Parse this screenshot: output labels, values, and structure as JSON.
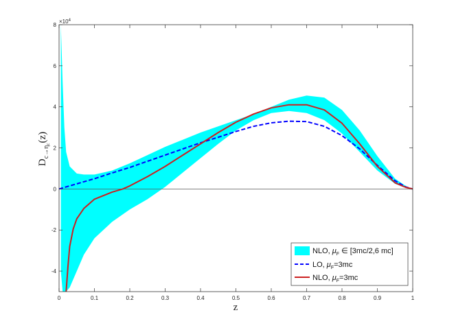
{
  "chart_data": {
    "type": "line",
    "title": "",
    "xlabel": "z",
    "ylabel_main": "D",
    "ylabel_sub": "c→η",
    "ylabel_subsub": "c",
    "ylabel_arg": "(z)",
    "y_exponent": "×10",
    "y_exponent_power": "4",
    "xlim": [
      0,
      1
    ],
    "ylim": [
      -50000,
      80000
    ],
    "x_ticks": [
      0,
      0.1,
      0.2,
      0.3,
      0.4,
      0.5,
      0.6,
      0.7,
      0.8,
      0.9,
      1
    ],
    "x_tick_labels": [
      "0",
      "0.1",
      "0.2",
      "0.3",
      "0.4",
      "0.5",
      "0.6",
      "0.7",
      "0.8",
      "0.9",
      "1"
    ],
    "y_ticks": [
      -40000,
      -20000,
      0,
      20000,
      40000,
      60000,
      80000
    ],
    "y_tick_labels": [
      "-4",
      "-2",
      "0",
      "2",
      "4",
      "6",
      "8"
    ],
    "grid": false,
    "legend_position": "bottom-right",
    "band": {
      "name": "NLO, μF ∈ [3mc/2,6 mc]",
      "color": "#00ffff",
      "x": [
        0.005,
        0.01,
        0.015,
        0.02,
        0.03,
        0.05,
        0.07,
        0.1,
        0.15,
        0.2,
        0.25,
        0.3,
        0.35,
        0.4,
        0.45,
        0.5,
        0.55,
        0.6,
        0.65,
        0.7,
        0.75,
        0.8,
        0.85,
        0.9,
        0.95,
        0.98,
        1.0
      ],
      "upper": [
        80000,
        52000,
        30000,
        18000,
        11000,
        7500,
        7000,
        7000,
        9000,
        12500,
        16500,
        20500,
        24000,
        27500,
        30500,
        33500,
        36500,
        40000,
        43500,
        45500,
        44500,
        38500,
        28500,
        16000,
        5000,
        1500,
        0
      ],
      "lower": [
        -40000,
        -50000,
        -50000,
        -50000,
        -48000,
        -40000,
        -32000,
        -24000,
        -16000,
        -10000,
        -5000,
        1000,
        8000,
        15000,
        22000,
        28500,
        33500,
        37000,
        38000,
        37000,
        33500,
        27000,
        18000,
        9000,
        2500,
        500,
        0
      ]
    },
    "series": [
      {
        "name": "LO, μF=3mc",
        "color": "#0000ff",
        "dash": true,
        "x": [
          0,
          0.05,
          0.1,
          0.15,
          0.2,
          0.25,
          0.3,
          0.35,
          0.4,
          0.45,
          0.5,
          0.55,
          0.6,
          0.65,
          0.7,
          0.75,
          0.8,
          0.85,
          0.9,
          0.95,
          0.98,
          1.0
        ],
        "y": [
          0,
          2500,
          5000,
          7800,
          10500,
          13500,
          16500,
          19500,
          22500,
          25200,
          28000,
          30500,
          32200,
          33000,
          32800,
          30500,
          26000,
          19500,
          11500,
          4000,
          1000,
          0
        ]
      },
      {
        "name": "NLO, μF=3mc",
        "color": "#cc1f1f",
        "dash": false,
        "x": [
          0.02,
          0.025,
          0.03,
          0.04,
          0.05,
          0.07,
          0.1,
          0.15,
          0.18,
          0.2,
          0.25,
          0.3,
          0.35,
          0.4,
          0.45,
          0.5,
          0.55,
          0.6,
          0.65,
          0.7,
          0.75,
          0.8,
          0.85,
          0.9,
          0.95,
          0.98,
          1.0
        ],
        "y": [
          -50000,
          -38000,
          -28000,
          -19500,
          -14500,
          -9500,
          -5000,
          -1500,
          0,
          1500,
          6000,
          11000,
          16500,
          22000,
          27500,
          32500,
          36500,
          39500,
          41000,
          41000,
          38500,
          32000,
          22000,
          11000,
          3000,
          800,
          0
        ]
      }
    ],
    "legend_entries": [
      {
        "label": "NLO, ",
        "mu": "μ",
        "sub": "F",
        "rest": " ∈ [3mc/2,6 mc]"
      },
      {
        "label": "LO, ",
        "mu": "μ",
        "sub": "F",
        "rest": "=3mc"
      },
      {
        "label": "NLO, ",
        "mu": "μ",
        "sub": "F",
        "rest": "=3mc"
      }
    ]
  }
}
